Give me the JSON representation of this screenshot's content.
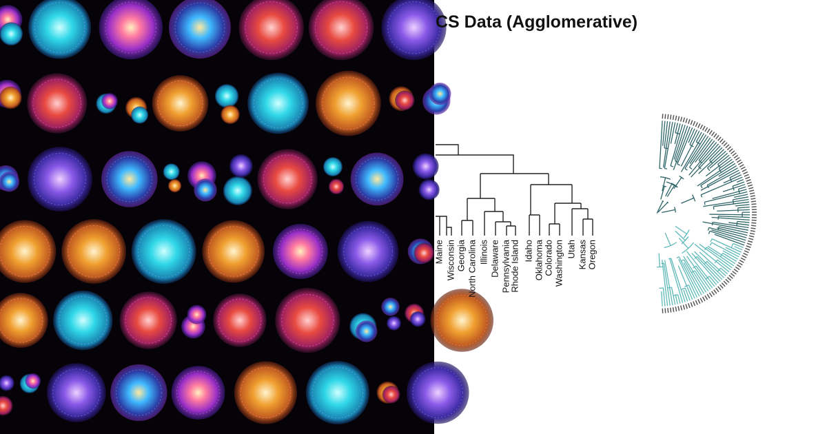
{
  "dendrogram": {
    "title": "CS Data (Agglomerative)",
    "leaves": [
      "Maine",
      "Wisconsin",
      "Georgia",
      "North Carolina",
      "Illinois",
      "Delaware",
      "Pennsylvania",
      "Rhode Island",
      "Idaho",
      "Oklahoma",
      "Colorado",
      "Washington",
      "Utah",
      "Kansas",
      "Oregon"
    ]
  }
}
